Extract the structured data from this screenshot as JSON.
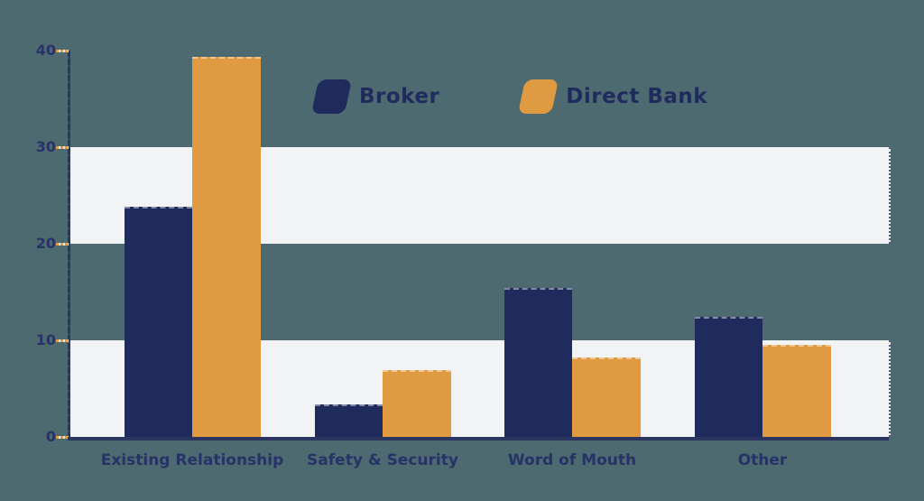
{
  "chart": {
    "background_color": "#4e6a71",
    "band_color": "#f2f3f4",
    "axis_color": "#2a3560",
    "tick_dash_color": "#e09b42",
    "text_color": "#273266",
    "legend_text_color": "#1f2b5c"
  },
  "chart_data": {
    "type": "bar",
    "title": "",
    "xlabel": "",
    "ylabel": "",
    "categories": [
      "Existing Relationship",
      "Safety & Security",
      "Word of Mouth",
      "Other"
    ],
    "series": [
      {
        "name": "Broker",
        "color": "#1f2b5c",
        "values": [
          23.8,
          3.4,
          15.4,
          12.4
        ]
      },
      {
        "name": "Direct Bank",
        "color": "#e09b42",
        "values": [
          39.3,
          6.9,
          8.2,
          9.5
        ]
      }
    ],
    "ylim": [
      0,
      40
    ],
    "yticks": [
      40,
      30,
      20,
      10,
      0
    ],
    "grid": "horizontal-bands",
    "bands": [
      [
        0,
        10
      ],
      [
        20,
        30
      ]
    ],
    "legend_position": "top-center"
  }
}
